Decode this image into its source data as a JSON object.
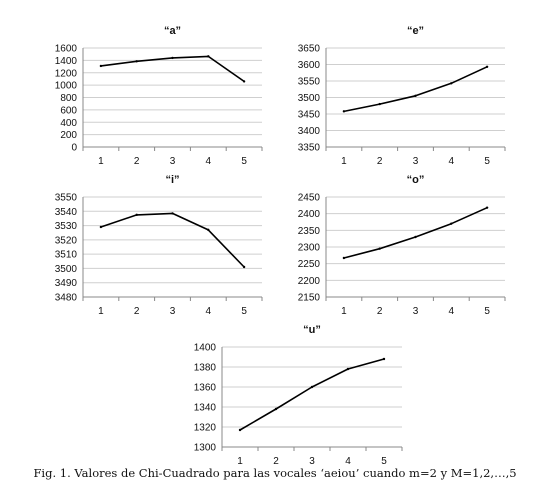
{
  "figure": {
    "caption": "Fig. 1. Valores de Chi-Cuadrado para las vocales ‘aeiou’ cuando m=2 y M=1,2,…,5"
  },
  "chart_data": [
    {
      "type": "line",
      "title": "“a”",
      "categories": [
        "1",
        "2",
        "3",
        "4",
        "5"
      ],
      "values": [
        1310,
        1385,
        1440,
        1465,
        1060
      ],
      "ylim": [
        0,
        1600
      ],
      "yticks": [
        0,
        200,
        400,
        600,
        800,
        1000,
        1200,
        1400,
        1600
      ],
      "grid": true,
      "legend": "none"
    },
    {
      "type": "line",
      "title": "“e”",
      "categories": [
        "1",
        "2",
        "3",
        "4",
        "5"
      ],
      "values": [
        3458,
        3480,
        3505,
        3543,
        3593
      ],
      "ylim": [
        3350,
        3650
      ],
      "yticks": [
        3350,
        3400,
        3450,
        3500,
        3550,
        3600,
        3650
      ],
      "grid": true,
      "legend": "none"
    },
    {
      "type": "line",
      "title": "“i”",
      "categories": [
        "1",
        "2",
        "3",
        "4",
        "5"
      ],
      "values": [
        3529,
        3537.5,
        3538.5,
        3527,
        3501
      ],
      "ylim": [
        3480,
        3550
      ],
      "yticks": [
        3480,
        3490,
        3500,
        3510,
        3520,
        3530,
        3540,
        3550
      ],
      "grid": true,
      "legend": "none"
    },
    {
      "type": "line",
      "title": "“o”",
      "categories": [
        "1",
        "2",
        "3",
        "4",
        "5"
      ],
      "values": [
        2267,
        2295,
        2330,
        2370,
        2418
      ],
      "ylim": [
        2150,
        2450
      ],
      "yticks": [
        2150,
        2200,
        2250,
        2300,
        2350,
        2400,
        2450
      ],
      "grid": true,
      "legend": "none"
    },
    {
      "type": "line",
      "title": "“u”",
      "categories": [
        "1",
        "2",
        "3",
        "4",
        "5"
      ],
      "values": [
        1317,
        1338,
        1360,
        1378,
        1388
      ],
      "ylim": [
        1300,
        1400
      ],
      "yticks": [
        1300,
        1320,
        1340,
        1360,
        1380,
        1400
      ],
      "grid": true,
      "legend": "none"
    }
  ]
}
